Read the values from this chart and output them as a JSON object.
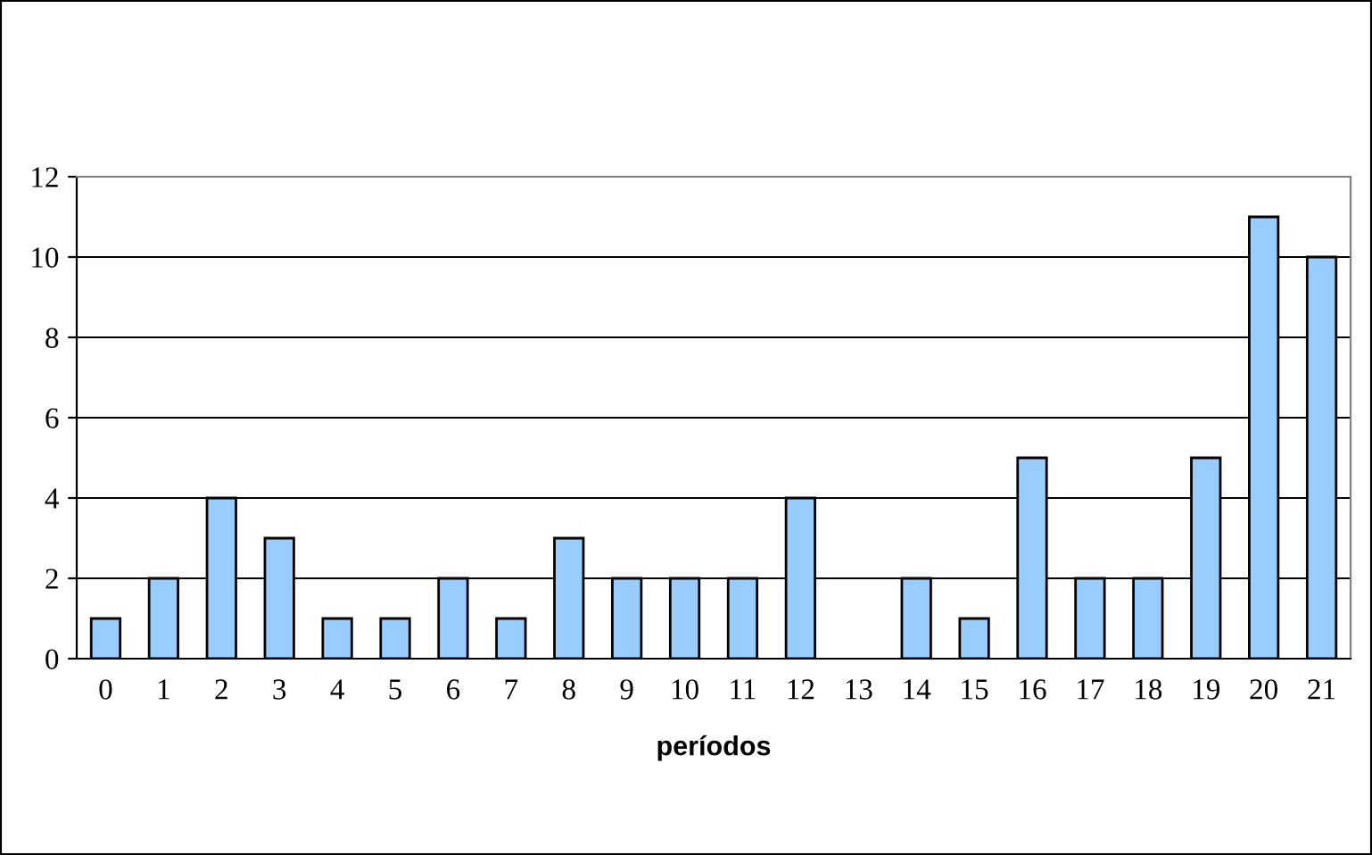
{
  "chart_data": {
    "type": "bar",
    "xlabel": "períodos",
    "categories": [
      "0",
      "1",
      "2",
      "3",
      "4",
      "5",
      "6",
      "7",
      "8",
      "9",
      "10",
      "11",
      "12",
      "13",
      "14",
      "15",
      "16",
      "17",
      "18",
      "19",
      "20",
      "21"
    ],
    "values": [
      1,
      2,
      4,
      3,
      1,
      1,
      2,
      1,
      3,
      2,
      2,
      2,
      4,
      0,
      2,
      1,
      5,
      2,
      2,
      5,
      11,
      10
    ],
    "color": "#99ccff",
    "ylim": [
      0,
      12
    ],
    "yticks": [
      0,
      2,
      4,
      6,
      8,
      10,
      12
    ],
    "grid": "y"
  }
}
